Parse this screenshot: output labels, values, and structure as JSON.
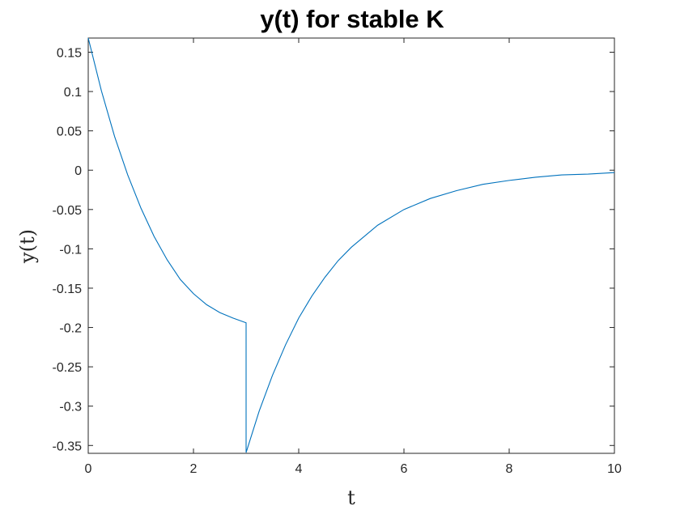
{
  "chart_data": {
    "type": "line",
    "title": "y(t) for stable K",
    "xlabel": "t",
    "ylabel": "y(t)",
    "xlim": [
      0,
      10
    ],
    "ylim": [
      -0.36,
      0.168
    ],
    "xticks": [
      0,
      2,
      4,
      6,
      8,
      10
    ],
    "xtick_labels": [
      "0",
      "2",
      "4",
      "6",
      "8",
      "10"
    ],
    "yticks": [
      0.15,
      0.1,
      0.05,
      0,
      -0.05,
      -0.1,
      -0.15,
      -0.2,
      -0.25,
      -0.3,
      -0.35
    ],
    "ytick_labels": [
      "0.15",
      "0.1",
      "0.05",
      "0",
      "-0.05",
      "-0.1",
      "-0.15",
      "-0.2",
      "-0.25",
      "-0.3",
      "-0.35"
    ],
    "grid": false,
    "legend": "none",
    "series": [
      {
        "color": "#0072BD",
        "x": [
          0,
          0.25,
          0.5,
          0.75,
          1.0,
          1.25,
          1.5,
          1.75,
          2.0,
          2.25,
          2.5,
          2.75,
          3.0,
          3.0,
          3.0,
          3.25,
          3.5,
          3.75,
          4.0,
          4.25,
          4.5,
          4.75,
          5.0,
          5.5,
          6.0,
          6.5,
          7.0,
          7.5,
          8.0,
          8.5,
          9.0,
          9.5,
          10.0
        ],
        "y": [
          0.168,
          0.101,
          0.043,
          -0.006,
          -0.048,
          -0.084,
          -0.114,
          -0.139,
          -0.157,
          -0.171,
          -0.181,
          -0.188,
          -0.194,
          -0.194,
          -0.359,
          -0.306,
          -0.261,
          -0.222,
          -0.188,
          -0.16,
          -0.136,
          -0.115,
          -0.098,
          -0.07,
          -0.05,
          -0.036,
          -0.026,
          -0.018,
          -0.013,
          -0.009,
          -0.006,
          -0.005,
          -0.003
        ]
      }
    ]
  }
}
